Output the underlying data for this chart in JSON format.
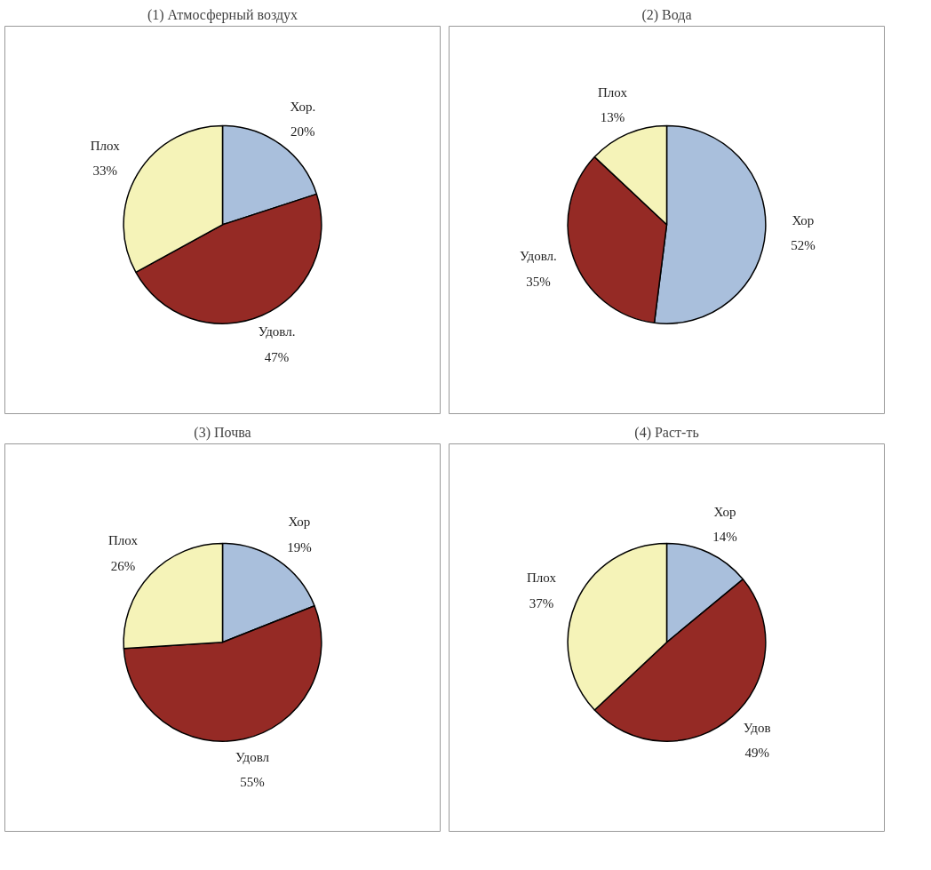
{
  "chart_data": [
    {
      "type": "pie",
      "title": "(1) Атмосферный воздух",
      "categories": [
        "Хор.",
        "Удовл.",
        "Плох"
      ],
      "values": [
        20,
        47,
        33
      ],
      "value_labels": [
        "20%",
        "47%",
        "33%"
      ],
      "colors": [
        "#a9bfdc",
        "#952a25",
        "#f5f3b8"
      ]
    },
    {
      "type": "pie",
      "title": "(2) Вода",
      "categories": [
        "Хор",
        "Удовл.",
        "Плох"
      ],
      "values": [
        52,
        35,
        13
      ],
      "value_labels": [
        "52%",
        "35%",
        "13%"
      ],
      "colors": [
        "#a9bfdc",
        "#952a25",
        "#f5f3b8"
      ]
    },
    {
      "type": "pie",
      "title": "(3) Почва",
      "categories": [
        "Хор",
        "Удовл",
        "Плох"
      ],
      "values": [
        19,
        55,
        26
      ],
      "value_labels": [
        "19%",
        "55%",
        "26%"
      ],
      "colors": [
        "#a9bfdc",
        "#952a25",
        "#f5f3b8"
      ]
    },
    {
      "type": "pie",
      "title": "(4) Раст-ть",
      "categories": [
        "Хор",
        "Удов",
        "Плох"
      ],
      "values": [
        14,
        49,
        37
      ],
      "value_labels": [
        "14%",
        "49%",
        "37%"
      ],
      "colors": [
        "#a9bfdc",
        "#952a25",
        "#f5f3b8"
      ]
    }
  ]
}
